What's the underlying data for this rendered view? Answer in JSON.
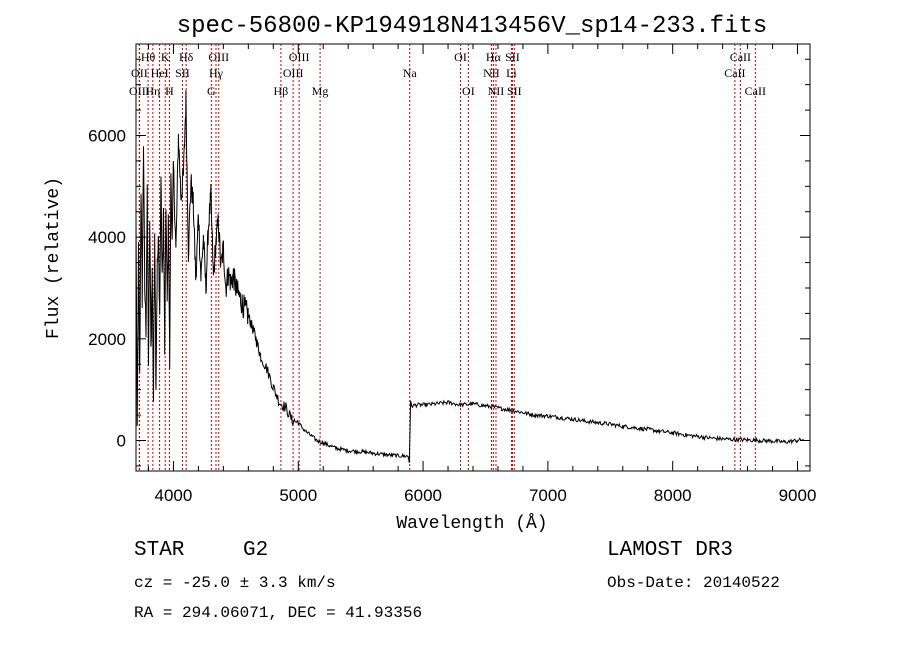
{
  "chart_data": {
    "type": "line",
    "title": "spec-56800-KP194918N413456V_sp14-233.fits",
    "xlabel": "Wavelength (Å)",
    "ylabel": "Flux (relative)",
    "xlim": [
      3700,
      9100
    ],
    "ylim": [
      -600,
      7800
    ],
    "xticks": [
      4000,
      5000,
      6000,
      7000,
      8000,
      9000
    ],
    "yticks": [
      0,
      2000,
      4000,
      6000
    ],
    "series": [
      {
        "name": "flux",
        "x": [
          3700,
          3710,
          3720,
          3730,
          3740,
          3750,
          3760,
          3770,
          3780,
          3790,
          3800,
          3810,
          3820,
          3830,
          3840,
          3850,
          3860,
          3870,
          3880,
          3890,
          3900,
          3910,
          3920,
          3930,
          3940,
          3950,
          3960,
          3970,
          3980,
          3990,
          4000,
          4020,
          4040,
          4060,
          4080,
          4100,
          4120,
          4140,
          4160,
          4180,
          4200,
          4220,
          4240,
          4260,
          4280,
          4300,
          4320,
          4340,
          4360,
          4380,
          4400,
          4420,
          4440,
          4460,
          4480,
          4500,
          4550,
          4600,
          4650,
          4700,
          4750,
          4800,
          4850,
          4900,
          4950,
          5000,
          5050,
          5100,
          5150,
          5200,
          5250,
          5300,
          5400,
          5500,
          5600,
          5700,
          5800,
          5880,
          5890,
          5900,
          5910,
          5950,
          6000,
          6100,
          6200,
          6300,
          6400,
          6500,
          6560,
          6600,
          6700,
          6800,
          6850,
          6900,
          7000,
          7100,
          7200,
          7300,
          7400,
          7500,
          7600,
          7700,
          7800,
          7900,
          8000,
          8100,
          8200,
          8300,
          8400,
          8500,
          8600,
          8700,
          8800,
          8900,
          9000,
          9050
        ],
        "y": [
          4300,
          200,
          3800,
          1200,
          5000,
          2800,
          5900,
          3000,
          2200,
          4800,
          1500,
          4300,
          1800,
          3300,
          800,
          4200,
          1100,
          3400,
          3900,
          2500,
          5200,
          3100,
          4500,
          1800,
          4700,
          2700,
          4400,
          1500,
          5300,
          3900,
          5400,
          3700,
          6000,
          4800,
          5200,
          6700,
          3700,
          5100,
          4600,
          3100,
          4500,
          3200,
          4000,
          3000,
          4200,
          4800,
          3200,
          3900,
          4300,
          3400,
          3800,
          3000,
          3300,
          3100,
          3250,
          3000,
          2700,
          2450,
          2100,
          1650,
          1400,
          1050,
          750,
          650,
          400,
          350,
          200,
          100,
          0,
          -50,
          -100,
          -150,
          -200,
          -220,
          -250,
          -280,
          -300,
          -310,
          -420,
          750,
          680,
          700,
          700,
          720,
          750,
          700,
          720,
          680,
          660,
          640,
          600,
          550,
          520,
          500,
          480,
          450,
          420,
          380,
          350,
          320,
          280,
          250,
          220,
          180,
          150,
          110,
          80,
          50,
          30,
          20,
          10,
          0,
          -10,
          -30,
          0,
          20
        ]
      }
    ],
    "spectral_lines": [
      {
        "name": "Hθ",
        "wavelength": 3797,
        "row": 0
      },
      {
        "name": "OII",
        "wavelength": 3727,
        "row": 1
      },
      {
        "name": "OIII",
        "wavelength": 3727,
        "row": 2
      },
      {
        "name": "Hη",
        "wavelength": 3835,
        "row": 2
      },
      {
        "name": "HeI",
        "wavelength": 3889,
        "row": 1
      },
      {
        "name": "K",
        "wavelength": 3934,
        "row": 0
      },
      {
        "name": "SII",
        "wavelength": 4072,
        "row": 1
      },
      {
        "name": "H",
        "wavelength": 3968,
        "row": 2
      },
      {
        "name": "Hδ",
        "wavelength": 4102,
        "row": 0
      },
      {
        "name": "OIII",
        "wavelength": 4363,
        "row": 0
      },
      {
        "name": "Hγ",
        "wavelength": 4341,
        "row": 1
      },
      {
        "name": "G",
        "wavelength": 4304,
        "row": 2
      },
      {
        "name": "Hβ",
        "wavelength": 4861,
        "row": 2
      },
      {
        "name": "OIII",
        "wavelength": 5007,
        "row": 0
      },
      {
        "name": "OIII",
        "wavelength": 4959,
        "row": 1
      },
      {
        "name": "Mg",
        "wavelength": 5175,
        "row": 2
      },
      {
        "name": "Na",
        "wavelength": 5893,
        "row": 1
      },
      {
        "name": "OI",
        "wavelength": 6300,
        "row": 0
      },
      {
        "name": "OI",
        "wavelength": 6363,
        "row": 2
      },
      {
        "name": "Hα",
        "wavelength": 6563,
        "row": 0
      },
      {
        "name": "SII",
        "wavelength": 6716,
        "row": 0
      },
      {
        "name": "NII",
        "wavelength": 6548,
        "row": 1
      },
      {
        "name": "Li",
        "wavelength": 6708,
        "row": 1
      },
      {
        "name": "NII",
        "wavelength": 6584,
        "row": 2
      },
      {
        "name": "SII",
        "wavelength": 6731,
        "row": 2
      },
      {
        "name": "CaII",
        "wavelength": 8542,
        "row": 0
      },
      {
        "name": "CaII",
        "wavelength": 8498,
        "row": 1
      },
      {
        "name": "CaII",
        "wavelength": 8662,
        "row": 2
      }
    ],
    "line_color": "#cc0000",
    "plot_color": "#000000"
  },
  "info": {
    "object_class": "STAR",
    "subclass": "G2",
    "survey": "LAMOST DR3",
    "redshift": "cz = -25.0 ± 3.3 km/s",
    "obs_date": "Obs-Date: 20140522",
    "coords": "RA = 294.06071, DEC =  41.93356"
  }
}
